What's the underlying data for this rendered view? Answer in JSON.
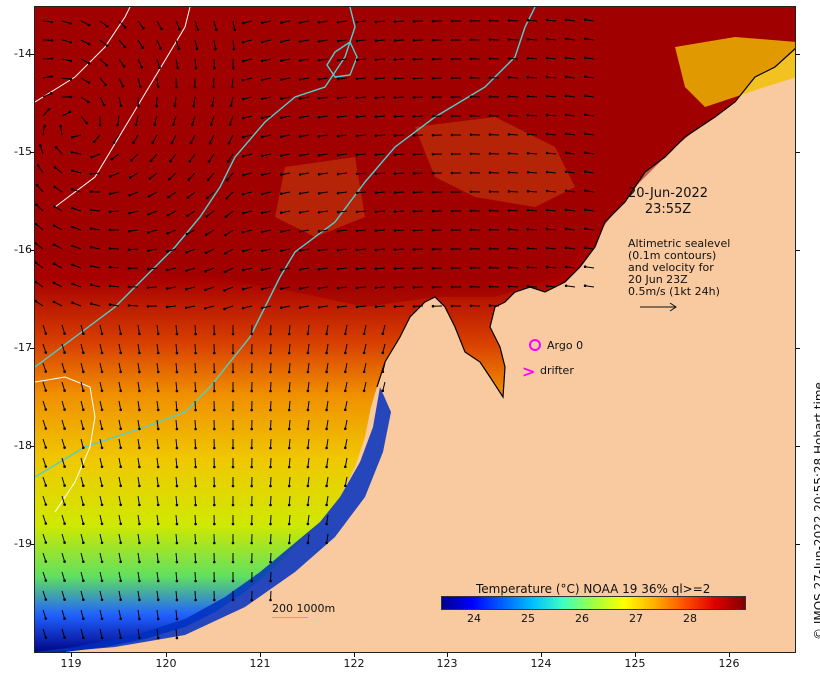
{
  "map": {
    "date_line1": "20-Jun-2022",
    "date_line2": "23:55Z",
    "altimetry_note": [
      "Altimetric sealevel",
      "(0.1m contours)",
      "and velocity for",
      "20 Jun 23Z",
      "0.5m/s (1kt 24h)"
    ],
    "argo_label": "Argo 0",
    "drifter_label": "drifter",
    "contour_legend_label": "200  1000m",
    "colorbar_title": "Temperature (°C) NOAA 19 36% ql>=2",
    "colorbar_ticks": [
      "24",
      "25",
      "26",
      "27",
      "28"
    ],
    "y_ticks": [
      "-14",
      "-15",
      "-16",
      "-17",
      "-18",
      "-19"
    ],
    "x_ticks": [
      "119",
      "120",
      "121",
      "122",
      "123",
      "124",
      "125",
      "126"
    ],
    "credit": "© IMOS 27-Jun-2022 20:55:28 Hobart time",
    "colors": {
      "land": "#f9caa0",
      "warm_sst": "#a00000",
      "cool_sst": "#0000a0",
      "contour": "#4fd0d0",
      "altimetry_contour": "#ffffff",
      "marker": "#ff00ff"
    },
    "icons": {
      "argo": "argo-float-circle-icon",
      "drifter": "drifter-chevron-icon",
      "velocity_scale": "velocity-arrow-icon"
    }
  }
}
